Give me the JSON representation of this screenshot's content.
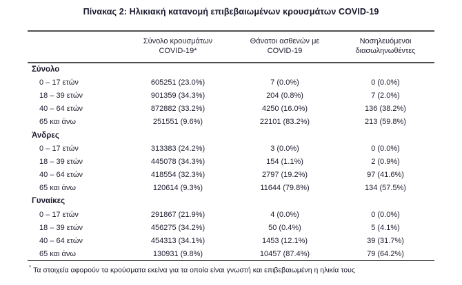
{
  "title": "Πίνακας 2: Ηλικιακή κατανομή επιβεβαιωμένων κρουσμάτων COVID-19",
  "colors": {
    "text": "#1c1c2e",
    "rule": "#4d4d4d",
    "background": "#ffffff"
  },
  "table": {
    "headers": [
      {
        "line1": "Σύνολο κρουσμάτων",
        "line2": "COVID-19*"
      },
      {
        "line1": "Θάνατοι ασθενών με",
        "line2": "COVID-19"
      },
      {
        "line1": "Νοσηλευόμενοι",
        "line2": "διασωληνωθέντες"
      }
    ],
    "sections": [
      {
        "name": "Σύνολο",
        "rows": [
          {
            "label": "0 – 17 ετών",
            "cells": [
              "605251 (23.0%)",
              "7 (0.0%)",
              "0 (0.0%)"
            ]
          },
          {
            "label": "18 – 39 ετών",
            "cells": [
              "901359 (34.3%)",
              "204 (0.8%)",
              "7 (2.0%)"
            ]
          },
          {
            "label": "40 – 64 ετών",
            "cells": [
              "872882 (33.2%)",
              "4250 (16.0%)",
              "136 (38.2%)"
            ]
          },
          {
            "label": "65 και άνω",
            "cells": [
              "251551 (9.6%)",
              "22101 (83.2%)",
              "213 (59.8%)"
            ]
          }
        ]
      },
      {
        "name": "Άνδρες",
        "rows": [
          {
            "label": "0 – 17 ετών",
            "cells": [
              "313383 (24.2%)",
              "3 (0.0%)",
              "0 (0.0%)"
            ]
          },
          {
            "label": "18 – 39 ετών",
            "cells": [
              "445078 (34.3%)",
              "154 (1.1%)",
              "2 (0.9%)"
            ]
          },
          {
            "label": "40 – 64 ετών",
            "cells": [
              "418554 (32.3%)",
              "2797 (19.2%)",
              "97 (41.6%)"
            ]
          },
          {
            "label": "65 και άνω",
            "cells": [
              "120614 (9.3%)",
              "11644 (79.8%)",
              "134 (57.5%)"
            ]
          }
        ]
      },
      {
        "name": "Γυναίκες",
        "rows": [
          {
            "label": "0 – 17 ετών",
            "cells": [
              "291867 (21.9%)",
              "4 (0.0%)",
              "0 (0.0%)"
            ]
          },
          {
            "label": "18 – 39 ετών",
            "cells": [
              "456275 (34.2%)",
              "50 (0.4%)",
              "5 (4.1%)"
            ]
          },
          {
            "label": "40 – 64 ετών",
            "cells": [
              "454313 (34.1%)",
              "1453 (12.1%)",
              "39 (31.7%)"
            ]
          },
          {
            "label": "65 και άνω",
            "cells": [
              "130931 (9.8%)",
              "10457 (87.4%)",
              "79 (64.2%)"
            ]
          }
        ]
      }
    ]
  },
  "footnote": {
    "marker": "*",
    "text": "Τα στοιχεία αφορούν τα κρούσματα εκείνα για τα οποία είναι γνωστή και επιβεβαιωμένη η ηλικία τους"
  }
}
